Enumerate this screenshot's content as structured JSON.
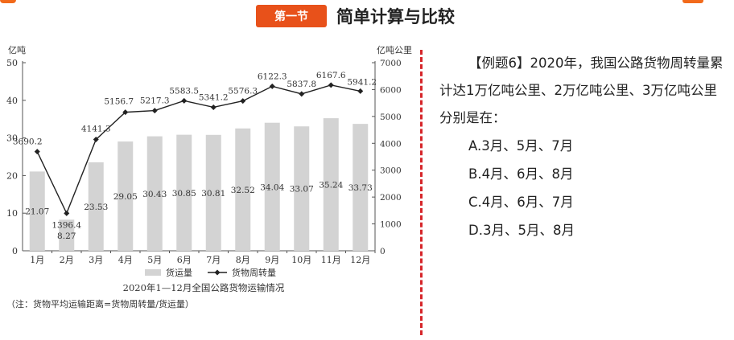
{
  "header": {
    "section_badge": "第一节",
    "section_title": "简单计算与比较"
  },
  "colors": {
    "accent": "#e8511a",
    "divider": "#d6262a",
    "bar": "#d3d3d3",
    "line": "#222222"
  },
  "question": {
    "stem": "【例题6】2020年，我国公路货物周转量累计达1万亿吨公里、2万亿吨公里、3万亿吨公里分别是在：",
    "options": [
      "A.3月、5月、7月",
      "B.4月、6月、8月",
      "C.4月、6月、7月",
      "D.3月、5月、8月"
    ]
  },
  "chart_data": {
    "type": "bar",
    "title": "2020年1—12月全国公路货物运输情况",
    "note": "（注：货物平均运输距离=货物周转量/货运量）",
    "categories": [
      "1月",
      "2月",
      "3月",
      "4月",
      "5月",
      "6月",
      "7月",
      "8月",
      "9月",
      "10月",
      "11月",
      "12月"
    ],
    "y_left_label": "亿吨",
    "y_right_label": "亿吨公里",
    "y_left_lim": [
      0,
      50
    ],
    "y_left_ticks": [
      "0",
      "10",
      "20",
      "30",
      "40",
      "50"
    ],
    "y_right_lim": [
      0,
      7000
    ],
    "y_right_ticks": [
      "0",
      "1000",
      "2000",
      "3000",
      "4000",
      "5000",
      "6000",
      "7000"
    ],
    "legend_position": "bottom",
    "series": [
      {
        "name": "货运量",
        "type": "bar",
        "axis": "left",
        "values": [
          21.07,
          8.27,
          23.53,
          29.05,
          30.43,
          30.85,
          30.81,
          32.52,
          34.04,
          33.07,
          35.24,
          33.73
        ],
        "labels": [
          "21.07",
          "8.27",
          "23.53",
          "29.05",
          "30.43",
          "30.85",
          "30.81",
          "32.52",
          "34.04",
          "33.07",
          "35.24",
          "33.73"
        ]
      },
      {
        "name": "货物周转量",
        "type": "line",
        "axis": "right",
        "values": [
          3690.2,
          1396.4,
          4141.3,
          5156.7,
          5217.3,
          5583.5,
          5341.2,
          5576.3,
          6122.3,
          5837.8,
          6167.6,
          5941.2
        ],
        "labels": [
          "3690.2",
          "1396.4",
          "4141.3",
          "5156.7",
          "5217.3",
          "5583.5",
          "5341.2",
          "5576.3",
          "6122.3",
          "5837.8",
          "6167.6",
          "5941.2"
        ]
      }
    ]
  }
}
